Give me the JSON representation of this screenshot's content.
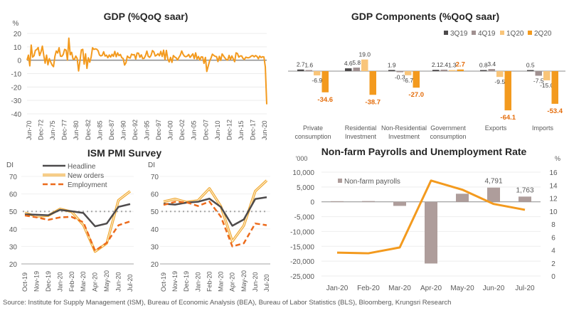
{
  "source": "Source: Institute for Supply Management (ISM), Bureau of Economic Analysis (BEA), Bureau of Labor Statistics (BLS), Bloomberg, Krungsri Research",
  "colors": {
    "gdp_line": "#F39A1E",
    "dark": "#4D4A4B",
    "grey": "#A09090",
    "light_orange": "#F9C57A",
    "orange": "#F39A1E",
    "employment": "#EC6B1C",
    "nfp_bar": "#AE9D9B",
    "label_orange": "#E46C0A"
  },
  "chart_data": [
    {
      "id": "gdp",
      "type": "line",
      "title": "GDP (%QoQ saar)",
      "ylabel": "%",
      "xlabel": "",
      "ylim": [
        -40,
        20
      ],
      "yticks": [
        20,
        10,
        0,
        -10,
        -20,
        -30,
        -40
      ],
      "xtick_labels": [
        "Jun-70",
        "Dec-72",
        "Jun-75",
        "Dec-77",
        "Jun-80",
        "Dec-82",
        "Jun-85",
        "Dec-87",
        "Jun-90",
        "Dec-92",
        "Jun-95",
        "Dec-97",
        "Jun-00",
        "Dec-02",
        "Jun-05",
        "Dec-07",
        "Jun-10",
        "Dec-12",
        "Jun-15",
        "Dec-17",
        "Jun-20"
      ],
      "grid": true,
      "series": [
        {
          "name": "GDP",
          "note": "quarterly, Jun-70 to Jun-20 (approximate readings)",
          "values": [
            0.1,
            3.8,
            -4.2,
            11.3,
            2.3,
            3.3,
            7.4,
            8.0,
            9.5,
            3.5,
            6.1,
            10.5,
            3.7,
            -2.2,
            3.8,
            -3.4,
            1.2,
            -1.4,
            -3.6,
            -4.8,
            2.9,
            6.9,
            5.4,
            9.3,
            3.0,
            2.9,
            4.4,
            8.1,
            7.6,
            0.1,
            16.5,
            4.1,
            5.9,
            1.0,
            0.6,
            3.1,
            1.3,
            -8.0,
            -0.4,
            7.7,
            8.1,
            -2.9,
            4.8,
            -6.1,
            1.8,
            -1.5,
            2.2,
            9.3,
            8.1,
            8.5,
            8.2,
            7.1,
            3.9,
            3.2,
            3.7,
            6.3,
            3.1,
            3.8,
            1.9,
            3.9,
            2.4,
            4.4,
            2.9,
            6.6,
            2.6,
            5.5,
            3.4,
            4.3,
            1.9,
            1.3,
            -3.6,
            -1.9,
            3.1,
            2.0,
            1.6,
            4.5,
            4.0,
            4.2,
            0.9,
            5.4,
            5.3,
            2.2,
            4.0,
            1.2,
            1.4,
            3.4,
            6.8,
            2.9,
            2.2,
            3.6,
            7.2,
            6.2,
            3.1,
            3.8,
            4.9,
            3.3,
            6.6,
            2.8,
            7.5,
            0.5,
            7.3,
            1.1,
            -1.3,
            2.1,
            -1.6,
            3.5,
            2.4,
            1.8,
            0.2,
            2.1,
            3.8,
            6.9,
            4.4,
            3.0,
            2.6,
            3.1,
            4.3,
            2.1,
            3.4,
            4.8,
            1.2,
            5.5,
            0.9,
            2.8,
            0.2,
            2.5,
            2.4,
            -2.3,
            2.1,
            -8.4,
            -4.4,
            -0.6,
            1.5,
            4.5,
            3.6,
            2.9,
            2.7,
            -1.0,
            2.9,
            -0.1,
            4.7,
            3.2,
            1.7,
            0.5,
            0.1,
            3.6,
            0.5,
            3.2,
            1.0,
            -1.1,
            5.5,
            5.0,
            2.3,
            3.2,
            3.2,
            1.3,
            0.6,
            2.3,
            1.9,
            1.8,
            2.3,
            3.2,
            3.5,
            2.5,
            3.5,
            2.9,
            1.1,
            3.1,
            2.0,
            2.6,
            2.4,
            -5.0,
            -32.9
          ]
        }
      ]
    },
    {
      "id": "gdp_components",
      "type": "bar",
      "title": "GDP Components (%QoQ saar)",
      "xlabel": "",
      "ylabel": "",
      "legend": "top-right",
      "categories": [
        "Private consumption",
        "Residential Investment",
        "Non-Residential Investment",
        "Government consumption",
        "Exports",
        "Imports"
      ],
      "category_lines": [
        [
          "Private",
          "consumption"
        ],
        [
          "Residential",
          "Investment"
        ],
        [
          "Non-Residential",
          "Investment"
        ],
        [
          "Government",
          "consumption"
        ],
        [
          "Exports"
        ],
        [
          "Imports"
        ]
      ],
      "series": [
        {
          "name": "3Q19",
          "values": [
            2.7,
            4.6,
            1.9,
            2.1,
            0.8,
            0.5
          ]
        },
        {
          "name": "4Q19",
          "values": [
            1.6,
            5.8,
            -0.3,
            2.4,
            3.4,
            -7.5
          ]
        },
        {
          "name": "1Q20",
          "values": [
            -6.9,
            19.0,
            -6.7,
            1.3,
            -9.5,
            -15.0
          ]
        },
        {
          "name": "2Q20",
          "values": [
            -34.6,
            -38.7,
            -27.0,
            2.7,
            -64.1,
            -53.4
          ]
        }
      ]
    },
    {
      "id": "ism_manufacturing",
      "type": "line",
      "title": "ISM PMI Survey",
      "ylabel": "DI",
      "ylim": [
        20,
        70
      ],
      "yticks": [
        70,
        60,
        50,
        40,
        30,
        20
      ],
      "reference_line": 50,
      "legend": "top-left",
      "categories": [
        "Oct-19",
        "Nov-19",
        "Dec-19",
        "Jan-20",
        "Feb-20",
        "Mar-20",
        "Apr-20",
        "May-20",
        "Jun-20",
        "Jul-20"
      ],
      "series": [
        {
          "name": "Headline",
          "values": [
            48.3,
            48.1,
            47.8,
            50.9,
            50.1,
            49.1,
            41.5,
            43.1,
            52.6,
            54.2
          ]
        },
        {
          "name": "New orders",
          "values": [
            49.1,
            47.2,
            47.6,
            51.4,
            49.8,
            42.2,
            27.1,
            31.8,
            56.4,
            61.5
          ]
        },
        {
          "name": "Employment",
          "values": [
            47.7,
            46.6,
            45.2,
            46.6,
            46.9,
            43.8,
            27.5,
            32.1,
            42.1,
            44.3
          ]
        }
      ]
    },
    {
      "id": "ism_services",
      "type": "line",
      "title": "",
      "ylabel": "DI",
      "ylim": [
        20,
        70
      ],
      "yticks": [
        70,
        60,
        50,
        40,
        30,
        20
      ],
      "reference_line": 50,
      "categories": [
        "Oct-19",
        "Nov-19",
        "Dec-19",
        "Jan-20",
        "Feb-20",
        "Mar-20",
        "Apr-20",
        "May-20",
        "Jun-20",
        "Jul-20"
      ],
      "series": [
        {
          "name": "Headline",
          "values": [
            54.4,
            53.9,
            55.0,
            55.5,
            57.3,
            52.5,
            41.8,
            45.4,
            57.1,
            58.1
          ]
        },
        {
          "name": "New orders",
          "values": [
            55.6,
            57.1,
            55.3,
            56.2,
            63.1,
            52.9,
            32.9,
            41.9,
            61.6,
            67.7
          ]
        },
        {
          "name": "Employment",
          "values": [
            53.7,
            55.5,
            55.2,
            53.1,
            55.6,
            47.0,
            30.0,
            31.8,
            43.1,
            42.1
          ]
        }
      ]
    },
    {
      "id": "nfp",
      "type": "bar",
      "title": "Non-farm Payrolls and Unemployment Rate",
      "ylabel": "'000",
      "y2label": "%",
      "ylim": [
        -25000,
        10000
      ],
      "yticks": [
        10000,
        5000,
        0,
        -5000,
        -10000,
        -15000,
        -20000,
        -25000
      ],
      "ytick_labels": [
        "10,000",
        "5,000",
        "0",
        "-5,000",
        "-10,000",
        "-15,000",
        "-20,000",
        "-25,000"
      ],
      "y2lim": [
        0,
        16
      ],
      "y2ticks": [
        16,
        14,
        12,
        10,
        8,
        6,
        4,
        2,
        0
      ],
      "legend": "top-left",
      "categories": [
        "Jan-20",
        "Feb-20",
        "Mar-20",
        "Apr-20",
        "May-20",
        "Jun-20",
        "Jul-20"
      ],
      "series": [
        {
          "name": "Non-farm payrolls",
          "axis": "left",
          "type": "bar",
          "values": [
            214,
            251,
            -1373,
            -20787,
            2725,
            4791,
            1763
          ],
          "data_labels": [
            "",
            "",
            "",
            "",
            "",
            "4,791",
            "1,763"
          ]
        },
        {
          "name": "Unemployment rate",
          "axis": "right",
          "type": "line",
          "values": [
            3.6,
            3.5,
            4.4,
            14.7,
            13.3,
            11.1,
            10.2
          ]
        }
      ]
    }
  ]
}
